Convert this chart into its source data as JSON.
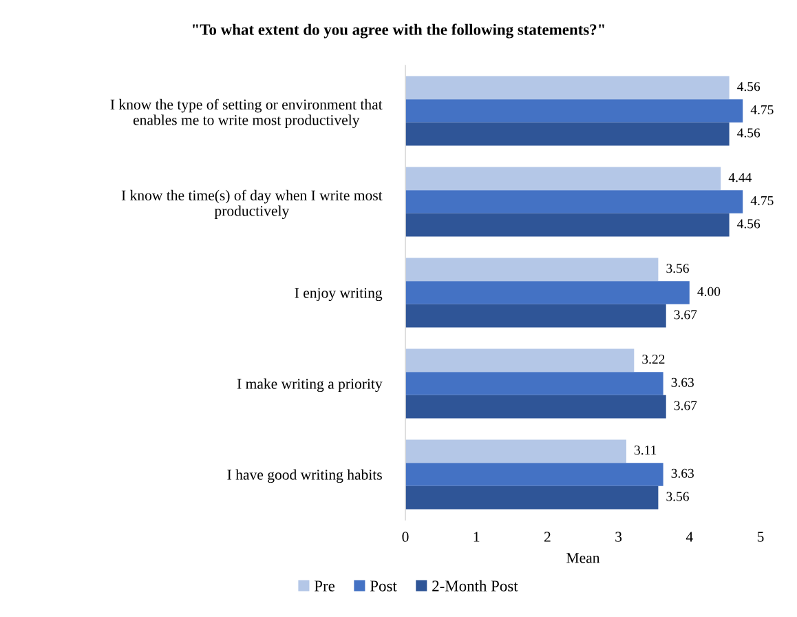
{
  "chart_data": {
    "type": "bar",
    "orientation": "horizontal",
    "title": "\"To what extent do you agree with the following statements?\"",
    "xlabel": "Mean",
    "categories": [
      "I know the type of setting or environment that\nenables me to write most productively",
      "I know the time(s) of day when I write most\nproductively",
      "I enjoy writing",
      "I make writing a priority",
      "I have good writing habits"
    ],
    "series": [
      {
        "name": "Pre",
        "color": "#b4c7e7",
        "values": [
          4.56,
          4.44,
          3.56,
          3.22,
          3.11
        ],
        "value_labels": [
          "4.56",
          "4.44",
          "3.56",
          "3.22",
          "3.11"
        ]
      },
      {
        "name": "Post",
        "color": "#4472c4",
        "values": [
          4.75,
          4.75,
          4.0,
          3.63,
          3.63
        ],
        "value_labels": [
          "4.75",
          "4.75",
          "4.00",
          "3.63",
          "3.63"
        ]
      },
      {
        "name": "2-Month Post",
        "color": "#2f5597",
        "values": [
          4.56,
          4.56,
          3.67,
          3.67,
          3.56
        ],
        "value_labels": [
          "4.56",
          "4.56",
          "3.67",
          "3.67",
          "3.56"
        ]
      }
    ],
    "xlim": [
      0,
      5
    ],
    "xticks": [
      0,
      1,
      2,
      3,
      4,
      5
    ],
    "legend": "bottom"
  }
}
